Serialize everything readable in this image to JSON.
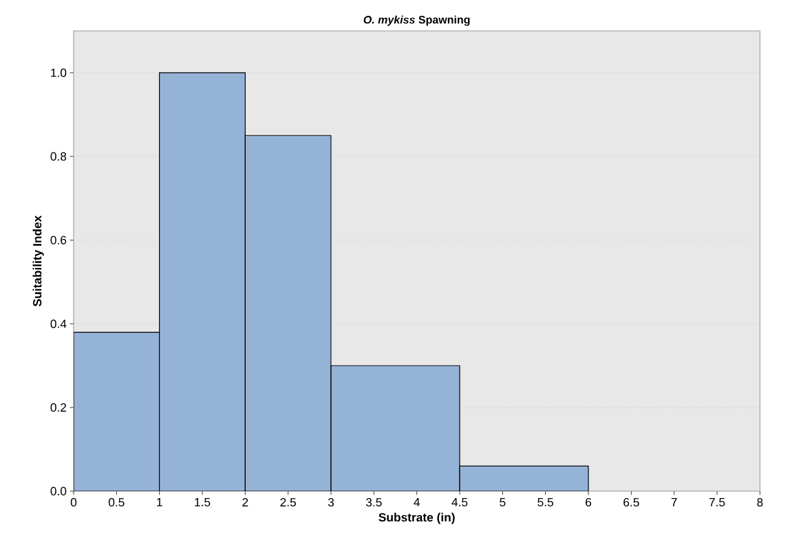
{
  "chart_data": {
    "type": "histogram",
    "title": "*O. mykiss* Spawning",
    "xlabel": "Substrate (in)",
    "ylabel": "Suitability Index",
    "bins": [
      0,
      1,
      2,
      3,
      4.5,
      6
    ],
    "values": [
      0.38,
      1.0,
      0.85,
      0.3,
      0.06
    ],
    "color": "#95b3d7",
    "xlim": [
      0,
      8
    ],
    "xticks": [
      0,
      0.5,
      1,
      1.5,
      2,
      2.5,
      3,
      3.5,
      4,
      4.5,
      5,
      5.5,
      6,
      6.5,
      7,
      7.5,
      8
    ],
    "ylim": [
      0,
      1.1
    ],
    "yticks": [
      {
        "value": 0,
        "label": "0.0"
      },
      0.2,
      0.4,
      0.6,
      0.8,
      {
        "value": 1,
        "label": "1.0"
      }
    ],
    "grid": "y"
  }
}
